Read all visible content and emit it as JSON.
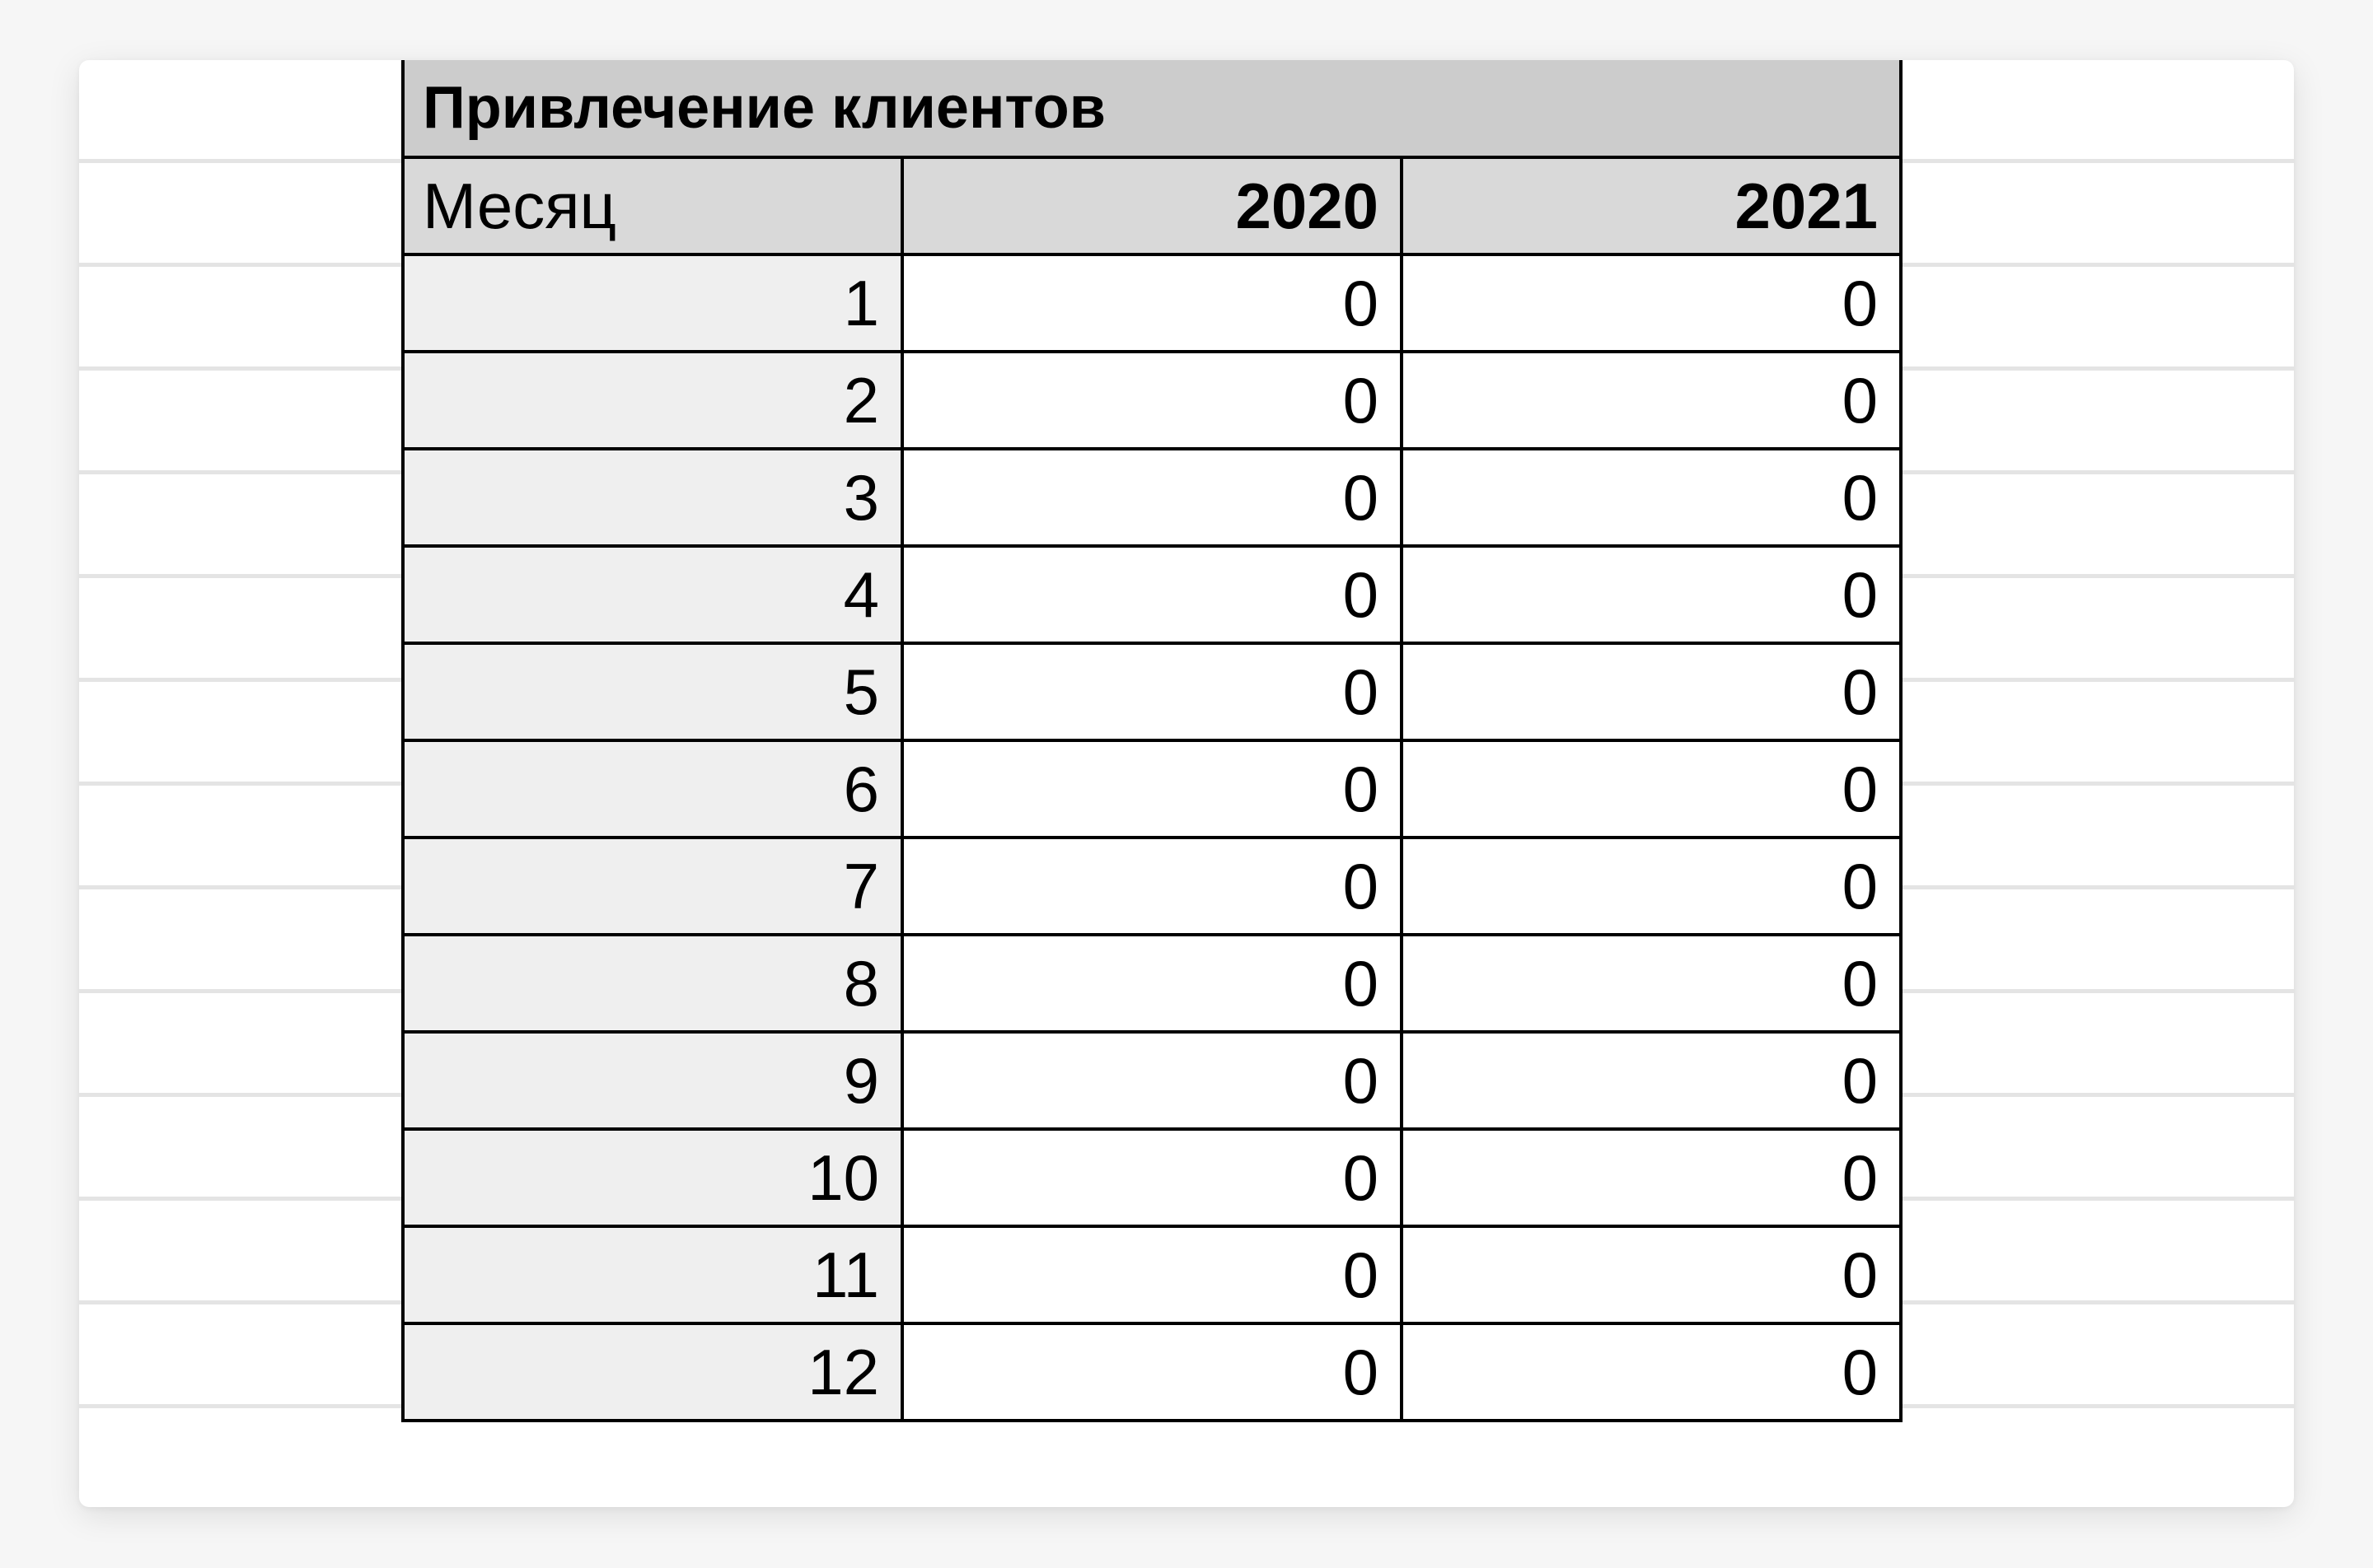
{
  "sheet": {
    "title": "Привлечение клиентов",
    "columns": [
      "Месяц",
      "2020",
      "2021"
    ],
    "rows": [
      [
        "1",
        "0",
        "0"
      ],
      [
        "2",
        "0",
        "0"
      ],
      [
        "3",
        "0",
        "0"
      ],
      [
        "4",
        "0",
        "0"
      ],
      [
        "5",
        "0",
        "0"
      ],
      [
        "6",
        "0",
        "0"
      ],
      [
        "7",
        "0",
        "0"
      ],
      [
        "8",
        "0",
        "0"
      ],
      [
        "9",
        "0",
        "0"
      ],
      [
        "10",
        "0",
        "0"
      ],
      [
        "11",
        "0",
        "0"
      ],
      [
        "12",
        "0",
        "0"
      ]
    ]
  },
  "colors": {
    "title_fill": "#cccccc",
    "header_fill": "#d9d9d9",
    "month_fill": "#efefef",
    "border": "#000000",
    "gridline": "#e4e4e4"
  }
}
